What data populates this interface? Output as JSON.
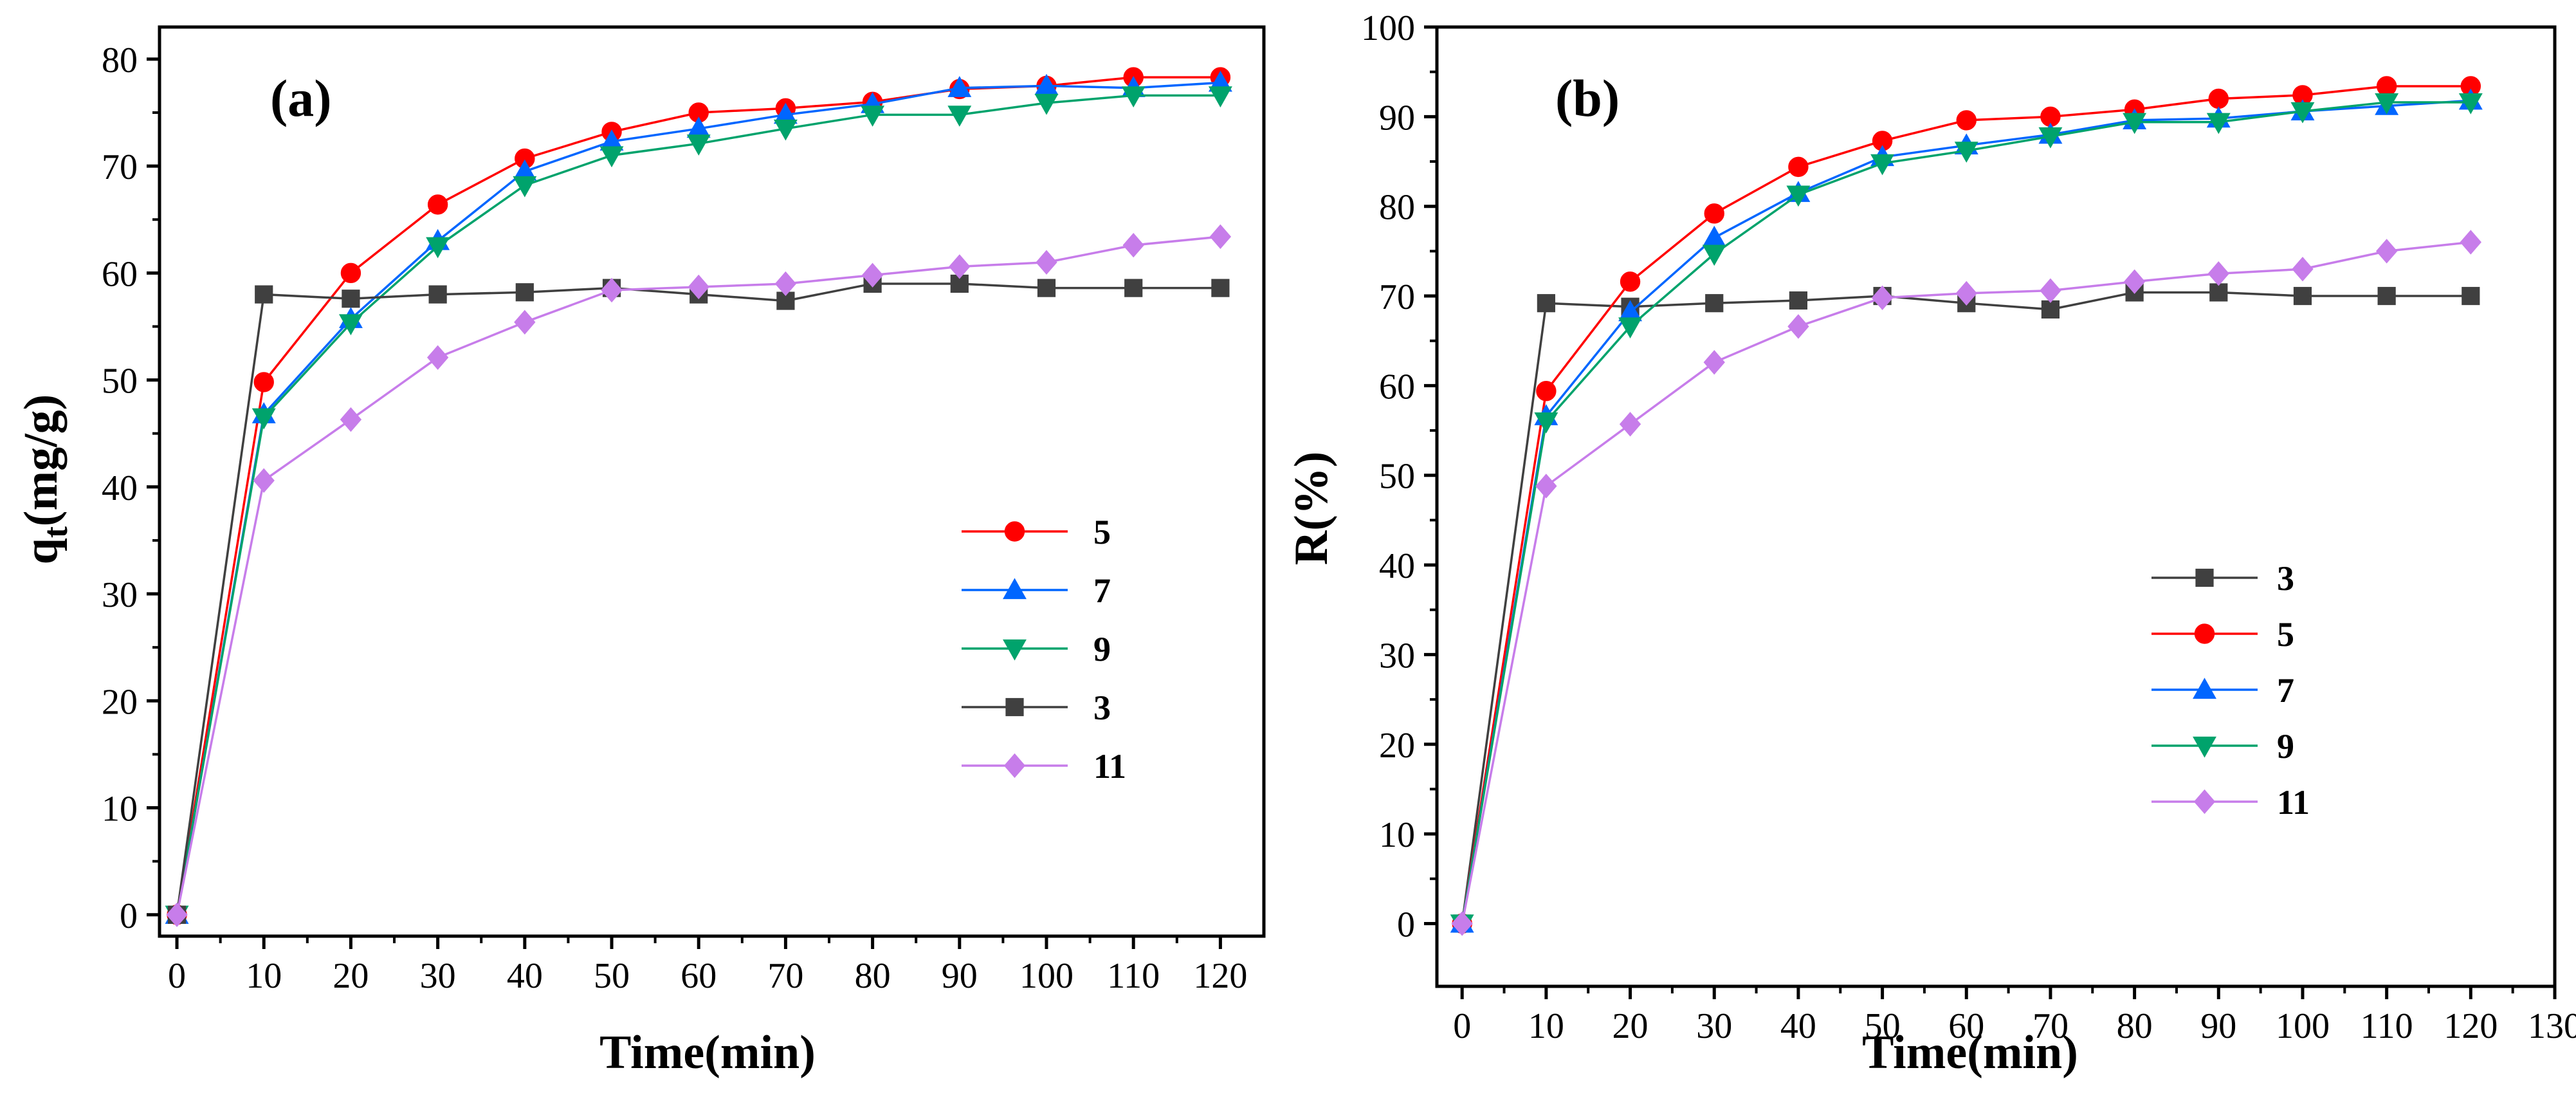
{
  "chart_data": [
    {
      "type": "line",
      "panel_label": "(a)",
      "xlabel": "Time(min)",
      "ylabel_main": "q",
      "ylabel_sub": "t",
      "ylabel_rest": "(mg/g)",
      "xlim": [
        -2,
        125
      ],
      "ylim": [
        -2,
        83
      ],
      "xticks": [
        0,
        10,
        20,
        30,
        40,
        50,
        60,
        70,
        80,
        90,
        100,
        110,
        120
      ],
      "yticks": [
        0,
        10,
        20,
        30,
        40,
        50,
        60,
        70,
        80
      ],
      "legend_position": "center-right",
      "x": [
        0,
        10,
        20,
        30,
        40,
        50,
        60,
        70,
        80,
        90,
        100,
        110,
        120
      ],
      "series": [
        {
          "name": "5",
          "color": "#ff0000",
          "marker": "circle",
          "values": [
            0,
            49.8,
            60.0,
            66.4,
            70.7,
            73.2,
            75.0,
            75.4,
            76.0,
            77.2,
            77.5,
            78.3,
            78.3
          ]
        },
        {
          "name": "7",
          "color": "#0066ff",
          "marker": "triangle-up",
          "values": [
            0,
            46.8,
            55.7,
            63.0,
            69.5,
            72.3,
            73.5,
            74.8,
            75.8,
            77.3,
            77.5,
            77.3,
            77.8
          ]
        },
        {
          "name": "9",
          "color": "#00a36c",
          "marker": "triangle-down",
          "values": [
            0,
            46.5,
            55.3,
            62.5,
            68.2,
            71.0,
            72.1,
            73.5,
            74.8,
            74.8,
            75.9,
            76.6,
            76.6
          ]
        },
        {
          "name": "3",
          "color": "#404040",
          "marker": "square",
          "values": [
            0,
            58.0,
            57.6,
            58.0,
            58.2,
            58.6,
            58.0,
            57.4,
            59.0,
            59.0,
            58.6,
            58.6,
            58.6
          ]
        },
        {
          "name": "11",
          "color": "#c77dea",
          "marker": "diamond",
          "values": [
            0,
            40.6,
            46.3,
            52.1,
            55.4,
            58.4,
            58.7,
            59.0,
            59.8,
            60.6,
            61.0,
            62.6,
            63.4
          ]
        }
      ]
    },
    {
      "type": "line",
      "panel_label": "(b)",
      "xlabel": "Time(min)",
      "ylabel": "R(%)",
      "xlim": [
        -3,
        130
      ],
      "ylim": [
        -7,
        100
      ],
      "xticks": [
        0,
        10,
        20,
        30,
        40,
        50,
        60,
        70,
        80,
        90,
        100,
        110,
        120,
        130
      ],
      "yticks": [
        0,
        10,
        20,
        30,
        40,
        50,
        60,
        70,
        80,
        90,
        100
      ],
      "legend_position": "lower-right",
      "x": [
        0,
        10,
        20,
        30,
        40,
        50,
        60,
        70,
        80,
        90,
        100,
        110,
        120
      ],
      "series": [
        {
          "name": "3",
          "color": "#404040",
          "marker": "square",
          "values": [
            0,
            69.2,
            68.8,
            69.2,
            69.5,
            70.0,
            69.2,
            68.5,
            70.4,
            70.4,
            70.0,
            70.0,
            70.0
          ]
        },
        {
          "name": "5",
          "color": "#ff0000",
          "marker": "circle",
          "values": [
            0,
            59.4,
            71.6,
            79.2,
            84.4,
            87.3,
            89.6,
            90.0,
            90.8,
            92.0,
            92.4,
            93.4,
            93.4
          ]
        },
        {
          "name": "7",
          "color": "#0066ff",
          "marker": "triangle-up",
          "values": [
            0,
            56.6,
            68.2,
            76.5,
            81.5,
            85.5,
            86.8,
            88.0,
            89.6,
            89.8,
            90.6,
            91.2,
            91.8
          ]
        },
        {
          "name": "9",
          "color": "#00a36c",
          "marker": "triangle-down",
          "values": [
            0,
            56.0,
            66.6,
            74.7,
            81.3,
            84.8,
            86.2,
            87.8,
            89.4,
            89.4,
            90.6,
            91.6,
            91.6
          ]
        },
        {
          "name": "11",
          "color": "#c77dea",
          "marker": "diamond",
          "values": [
            0,
            48.8,
            55.7,
            62.6,
            66.6,
            69.8,
            70.3,
            70.6,
            71.6,
            72.5,
            73.0,
            75.0,
            76.0
          ]
        }
      ]
    }
  ]
}
